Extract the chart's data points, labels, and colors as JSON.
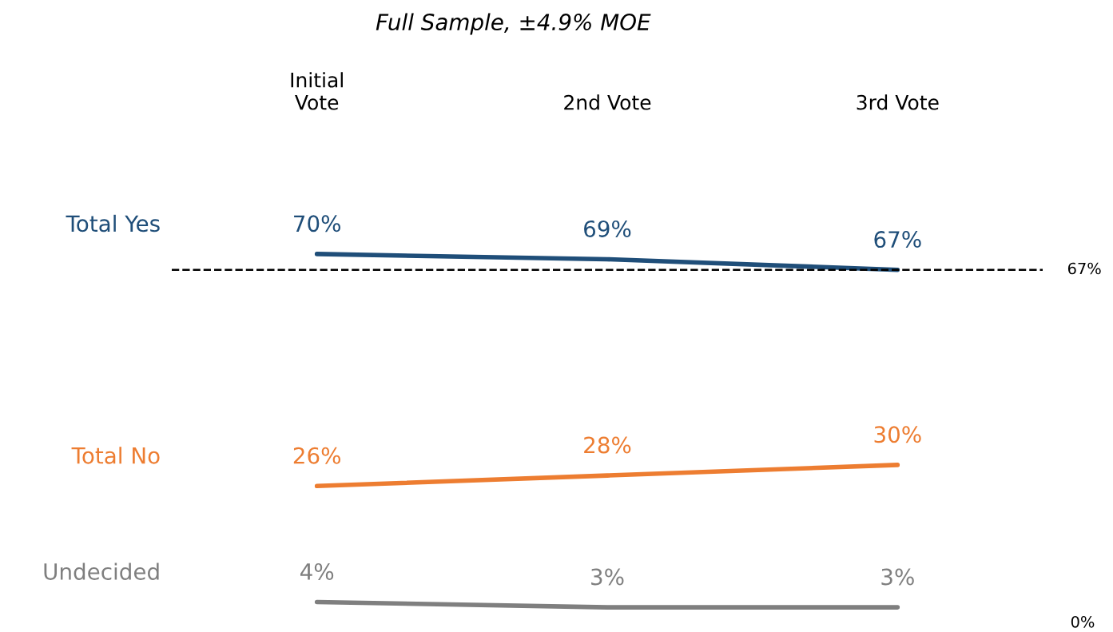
{
  "chart_data": {
    "type": "line",
    "title": "Full Sample, ±4.9% MOE",
    "categories": [
      "Initial\nVote",
      "2nd Vote",
      "3rd Vote"
    ],
    "series": [
      {
        "name": "Total Yes",
        "color": "#1f4e79",
        "values": [
          70,
          69,
          67
        ],
        "value_labels": [
          "70%",
          "69%",
          "67%"
        ]
      },
      {
        "name": "Total No",
        "color": "#ed7d31",
        "values": [
          26,
          28,
          30
        ],
        "value_labels": [
          "26%",
          "28%",
          "30%"
        ]
      },
      {
        "name": "Undecided",
        "color": "#7f7f7f",
        "values": [
          4,
          3,
          3
        ],
        "value_labels": [
          "4%",
          "3%",
          "3%"
        ]
      }
    ],
    "ref_lines": [
      {
        "axis": "y",
        "value": 67,
        "label": "67%",
        "color": "#000000",
        "line_style": "dashed"
      }
    ],
    "annotations": [
      "0%"
    ],
    "grid": false,
    "legend": false,
    "marker": "none",
    "line_style": "solid"
  }
}
